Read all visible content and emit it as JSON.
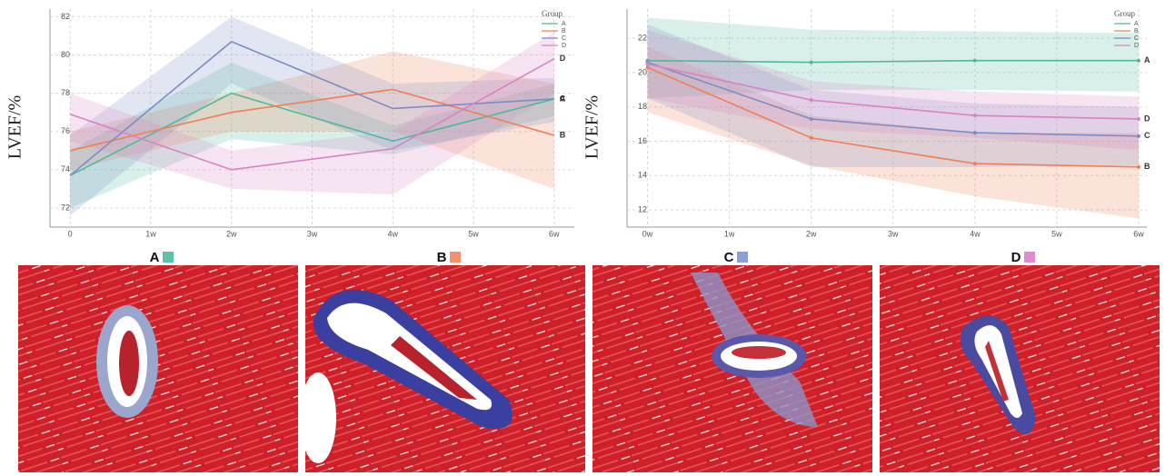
{
  "chart_data": [
    {
      "type": "line",
      "y_label": "LVEF/%",
      "legend_title": "Group",
      "legend": "upper right",
      "grid": true,
      "markers": false,
      "x": [
        0,
        2,
        4,
        6
      ],
      "xlim": [
        -0.25,
        6.25
      ],
      "xticks": [
        {
          "value": 0,
          "label": "0"
        },
        {
          "value": 1,
          "label": "1w"
        },
        {
          "value": 2,
          "label": "2w"
        },
        {
          "value": 3,
          "label": "3w"
        },
        {
          "value": 4,
          "label": "4w"
        },
        {
          "value": 5,
          "label": "5w"
        },
        {
          "value": 6,
          "label": "6w"
        }
      ],
      "ylim": [
        71,
        82.4
      ],
      "yticks": [
        72,
        74,
        76,
        78,
        80,
        82
      ],
      "series": [
        {
          "name": "A",
          "color": "#4fb99a",
          "values": [
            73.7,
            78.0,
            75.5,
            77.7
          ],
          "lower": [
            72.0,
            75.6,
            74.8,
            76.8
          ],
          "upper": [
            75.0,
            79.6,
            76.3,
            78.5
          ]
        },
        {
          "name": "B",
          "color": "#f07f55",
          "values": [
            75.0,
            77.0,
            78.2,
            75.8
          ],
          "lower": [
            74.0,
            76.0,
            76.0,
            73.0
          ],
          "upper": [
            76.0,
            78.0,
            80.2,
            78.5
          ]
        },
        {
          "name": "C",
          "color": "#7b8cc6",
          "values": [
            73.7,
            80.7,
            77.2,
            77.7
          ],
          "lower": [
            71.6,
            78.5,
            75.0,
            76.5
          ],
          "upper": [
            75.8,
            82.0,
            78.5,
            78.8
          ]
        },
        {
          "name": "D",
          "color": "#d982c4",
          "values": [
            76.9,
            74.0,
            75.1,
            79.8
          ],
          "lower": [
            75.5,
            73.0,
            72.7,
            78.0
          ],
          "upper": [
            78.0,
            75.0,
            76.0,
            81.2
          ]
        }
      ]
    },
    {
      "type": "line",
      "y_label": "LVEF/%",
      "legend_title": "Group",
      "legend": "upper right",
      "grid": true,
      "markers": true,
      "x": [
        0,
        2,
        4,
        6
      ],
      "xlim": [
        -0.25,
        6.1
      ],
      "xticks": [
        {
          "value": 0,
          "label": "0w"
        },
        {
          "value": 1,
          "label": "1w"
        },
        {
          "value": 2,
          "label": "2w"
        },
        {
          "value": 3,
          "label": "3w"
        },
        {
          "value": 4,
          "label": "4w"
        },
        {
          "value": 5,
          "label": "5w"
        },
        {
          "value": 6,
          "label": "6w"
        }
      ],
      "ylim": [
        11,
        23.7
      ],
      "yticks": [
        12,
        14,
        16,
        18,
        20,
        22
      ],
      "series": [
        {
          "name": "A",
          "color": "#4fb99a",
          "values": [
            20.7,
            20.6,
            20.7,
            20.7
          ],
          "lower": [
            18.5,
            19.0,
            19.0,
            18.9
          ],
          "upper": [
            23.2,
            22.5,
            22.4,
            22.3
          ]
        },
        {
          "name": "B",
          "color": "#f07f55",
          "values": [
            20.3,
            16.2,
            14.7,
            14.5
          ],
          "lower": [
            17.7,
            14.6,
            12.8,
            11.5
          ],
          "upper": [
            21.5,
            17.5,
            16.5,
            16.5
          ]
        },
        {
          "name": "C",
          "color": "#7b8cc6",
          "values": [
            20.6,
            17.3,
            16.5,
            16.3
          ],
          "lower": [
            18.5,
            14.5,
            14.5,
            14.6
          ],
          "upper": [
            22.8,
            19.0,
            18.2,
            18.0
          ]
        },
        {
          "name": "D",
          "color": "#d982c4",
          "values": [
            20.5,
            18.4,
            17.5,
            17.3
          ],
          "lower": [
            18.5,
            16.7,
            16.2,
            15.5
          ],
          "upper": [
            22.5,
            19.5,
            18.9,
            18.6
          ]
        }
      ]
    }
  ],
  "panels": [
    {
      "label": "A",
      "color": "#5cc4a6"
    },
    {
      "label": "B",
      "color": "#f4906a"
    },
    {
      "label": "C",
      "color": "#8aa0d6"
    },
    {
      "label": "D",
      "color": "#e08ad0"
    }
  ]
}
